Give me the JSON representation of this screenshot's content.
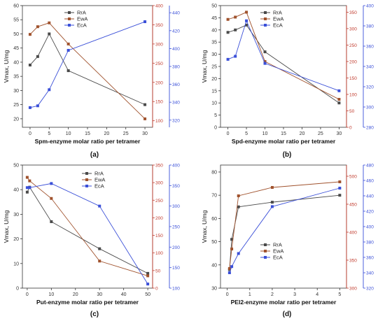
{
  "colors": {
    "rra": "#4a4a4a",
    "ewa": "#a0522d",
    "eca": "#3a4fd8",
    "axis": "#333333",
    "right1": "#c0392b",
    "right2": "#3a4fd8"
  },
  "chart_data": [
    {
      "type": "line",
      "panel_label": "(a)",
      "xlabel": "Spm-enzyme molar ratio per tetramer",
      "ylabel": "Vmax, U/mg",
      "xlim": [
        -2,
        32
      ],
      "xticks": [
        "0",
        "5",
        "10",
        "15",
        "20",
        "25",
        "30"
      ],
      "ylim": [
        17,
        60
      ],
      "yticks": [
        "20",
        "25",
        "30",
        "35",
        "40",
        "45",
        "50",
        "55",
        "60"
      ],
      "y2lim": [
        83,
        400
      ],
      "y2ticks": [
        "100",
        "150",
        "200",
        "250",
        "300",
        "350",
        "400"
      ],
      "y3lim": [
        312,
        448
      ],
      "y3ticks": [
        "320",
        "340",
        "360",
        "380",
        "400",
        "420",
        "440"
      ],
      "legend": [
        "RrA",
        "EwA",
        "EcA"
      ],
      "legend_position": "top-left",
      "series": [
        {
          "name": "RrA",
          "axis": "left",
          "x": [
            0,
            2,
            5,
            10,
            30
          ],
          "y": [
            39,
            42,
            50,
            37,
            25
          ]
        },
        {
          "name": "EwA",
          "axis": "right1",
          "x": [
            0,
            2,
            5,
            10,
            30
          ],
          "y": [
            325,
            345,
            355,
            300,
            105
          ]
        },
        {
          "name": "EcA",
          "axis": "right2",
          "x": [
            0,
            2,
            5,
            10,
            30
          ],
          "y": [
            334,
            336,
            354,
            398,
            430
          ]
        }
      ]
    },
    {
      "type": "line",
      "panel_label": "(b)",
      "xlabel": "Spd-enzyme molar ratio per tetramer",
      "ylabel": "Vmax, U/mg",
      "xlim": [
        -2,
        32
      ],
      "xticks": [
        "0",
        "5",
        "10",
        "15",
        "20",
        "25",
        "30"
      ],
      "ylim": [
        0,
        50
      ],
      "yticks": [
        "0",
        "5",
        "10",
        "15",
        "20",
        "25",
        "30",
        "35",
        "40",
        "45",
        "50"
      ],
      "y2lim": [
        0,
        370
      ],
      "y2ticks": [
        "0",
        "50",
        "100",
        "150",
        "200",
        "250",
        "300",
        "350"
      ],
      "y3lim": [
        280,
        400
      ],
      "y3ticks": [
        "280",
        "300",
        "320",
        "340",
        "360",
        "380",
        "400"
      ],
      "legend": [
        "RrA",
        "EwA",
        "EcA"
      ],
      "legend_position": "top-right",
      "series": [
        {
          "name": "RrA",
          "axis": "left",
          "x": [
            0,
            2,
            5,
            10,
            30
          ],
          "y": [
            39,
            40,
            42,
            31,
            10
          ]
        },
        {
          "name": "EwA",
          "axis": "right1",
          "x": [
            0,
            2,
            5,
            10,
            30
          ],
          "y": [
            328,
            335,
            350,
            200,
            85
          ]
        },
        {
          "name": "EcA",
          "axis": "right2",
          "x": [
            0,
            2,
            5,
            10,
            30
          ],
          "y": [
            347,
            350,
            385,
            343,
            316
          ]
        }
      ]
    },
    {
      "type": "line",
      "panel_label": "(c)",
      "xlabel": "Put-enzyme molar ratio per tetramer",
      "ylabel": "Vmax, U/mg",
      "xlim": [
        -2,
        52
      ],
      "xticks": [
        "0",
        "10",
        "20",
        "30",
        "40",
        "50"
      ],
      "ylim": [
        0,
        50
      ],
      "yticks": [
        "0",
        "10",
        "20",
        "30",
        "40",
        "50"
      ],
      "y2lim": [
        0,
        350
      ],
      "y2ticks": [
        "0",
        "50",
        "100",
        "150",
        "200",
        "250",
        "300",
        "350"
      ],
      "y3lim": [
        100,
        400
      ],
      "y3ticks": [
        "100",
        "150",
        "200",
        "250",
        "300",
        "350",
        "400"
      ],
      "legend": [
        "RrA",
        "EwA",
        "EcA"
      ],
      "legend_position": "top-right",
      "series": [
        {
          "name": "RrA",
          "axis": "left",
          "x": [
            0,
            1,
            10,
            30,
            50
          ],
          "y": [
            39,
            41,
            27,
            16,
            6
          ]
        },
        {
          "name": "EwA",
          "axis": "right1",
          "x": [
            0,
            1,
            10,
            30,
            50
          ],
          "y": [
            315,
            305,
            255,
            77,
            35
          ]
        },
        {
          "name": "EcA",
          "axis": "right2",
          "x": [
            0,
            1,
            10,
            30,
            50
          ],
          "y": [
            345,
            345,
            355,
            300,
            110
          ]
        }
      ]
    },
    {
      "type": "line",
      "panel_label": "(d)",
      "xlabel": "PEI2-enzyme molar ratio per tetramer",
      "ylabel": "Vmax, U/mg",
      "xlim": [
        -0.3,
        5.3
      ],
      "xticks": [
        "0",
        "1",
        "2",
        "3",
        "4",
        "5"
      ],
      "ylim": [
        30,
        83
      ],
      "yticks": [
        "30",
        "40",
        "50",
        "60",
        "70",
        "80"
      ],
      "y2lim": [
        300,
        520
      ],
      "y2ticks": [
        "300",
        "350",
        "400",
        "450",
        "500"
      ],
      "y3lim": [
        320,
        480
      ],
      "y3ticks": [
        "320",
        "340",
        "360",
        "380",
        "400",
        "420",
        "440",
        "460",
        "480"
      ],
      "legend": [
        "RrA",
        "EwA",
        "EcA"
      ],
      "legend_position": "center-right",
      "series": [
        {
          "name": "RrA",
          "axis": "left",
          "x": [
            0.1,
            0.2,
            0.5,
            2,
            5
          ],
          "y": [
            38,
            51,
            65,
            67,
            70
          ]
        },
        {
          "name": "EwA",
          "axis": "right1",
          "x": [
            0.1,
            0.2,
            0.5,
            2,
            5
          ],
          "y": [
            335,
            370,
            465,
            480,
            490
          ]
        },
        {
          "name": "EcA",
          "axis": "right2",
          "x": [
            0.1,
            0.2,
            0.5,
            2,
            5
          ],
          "y": [
            340,
            348,
            365,
            426,
            450
          ]
        }
      ]
    }
  ]
}
